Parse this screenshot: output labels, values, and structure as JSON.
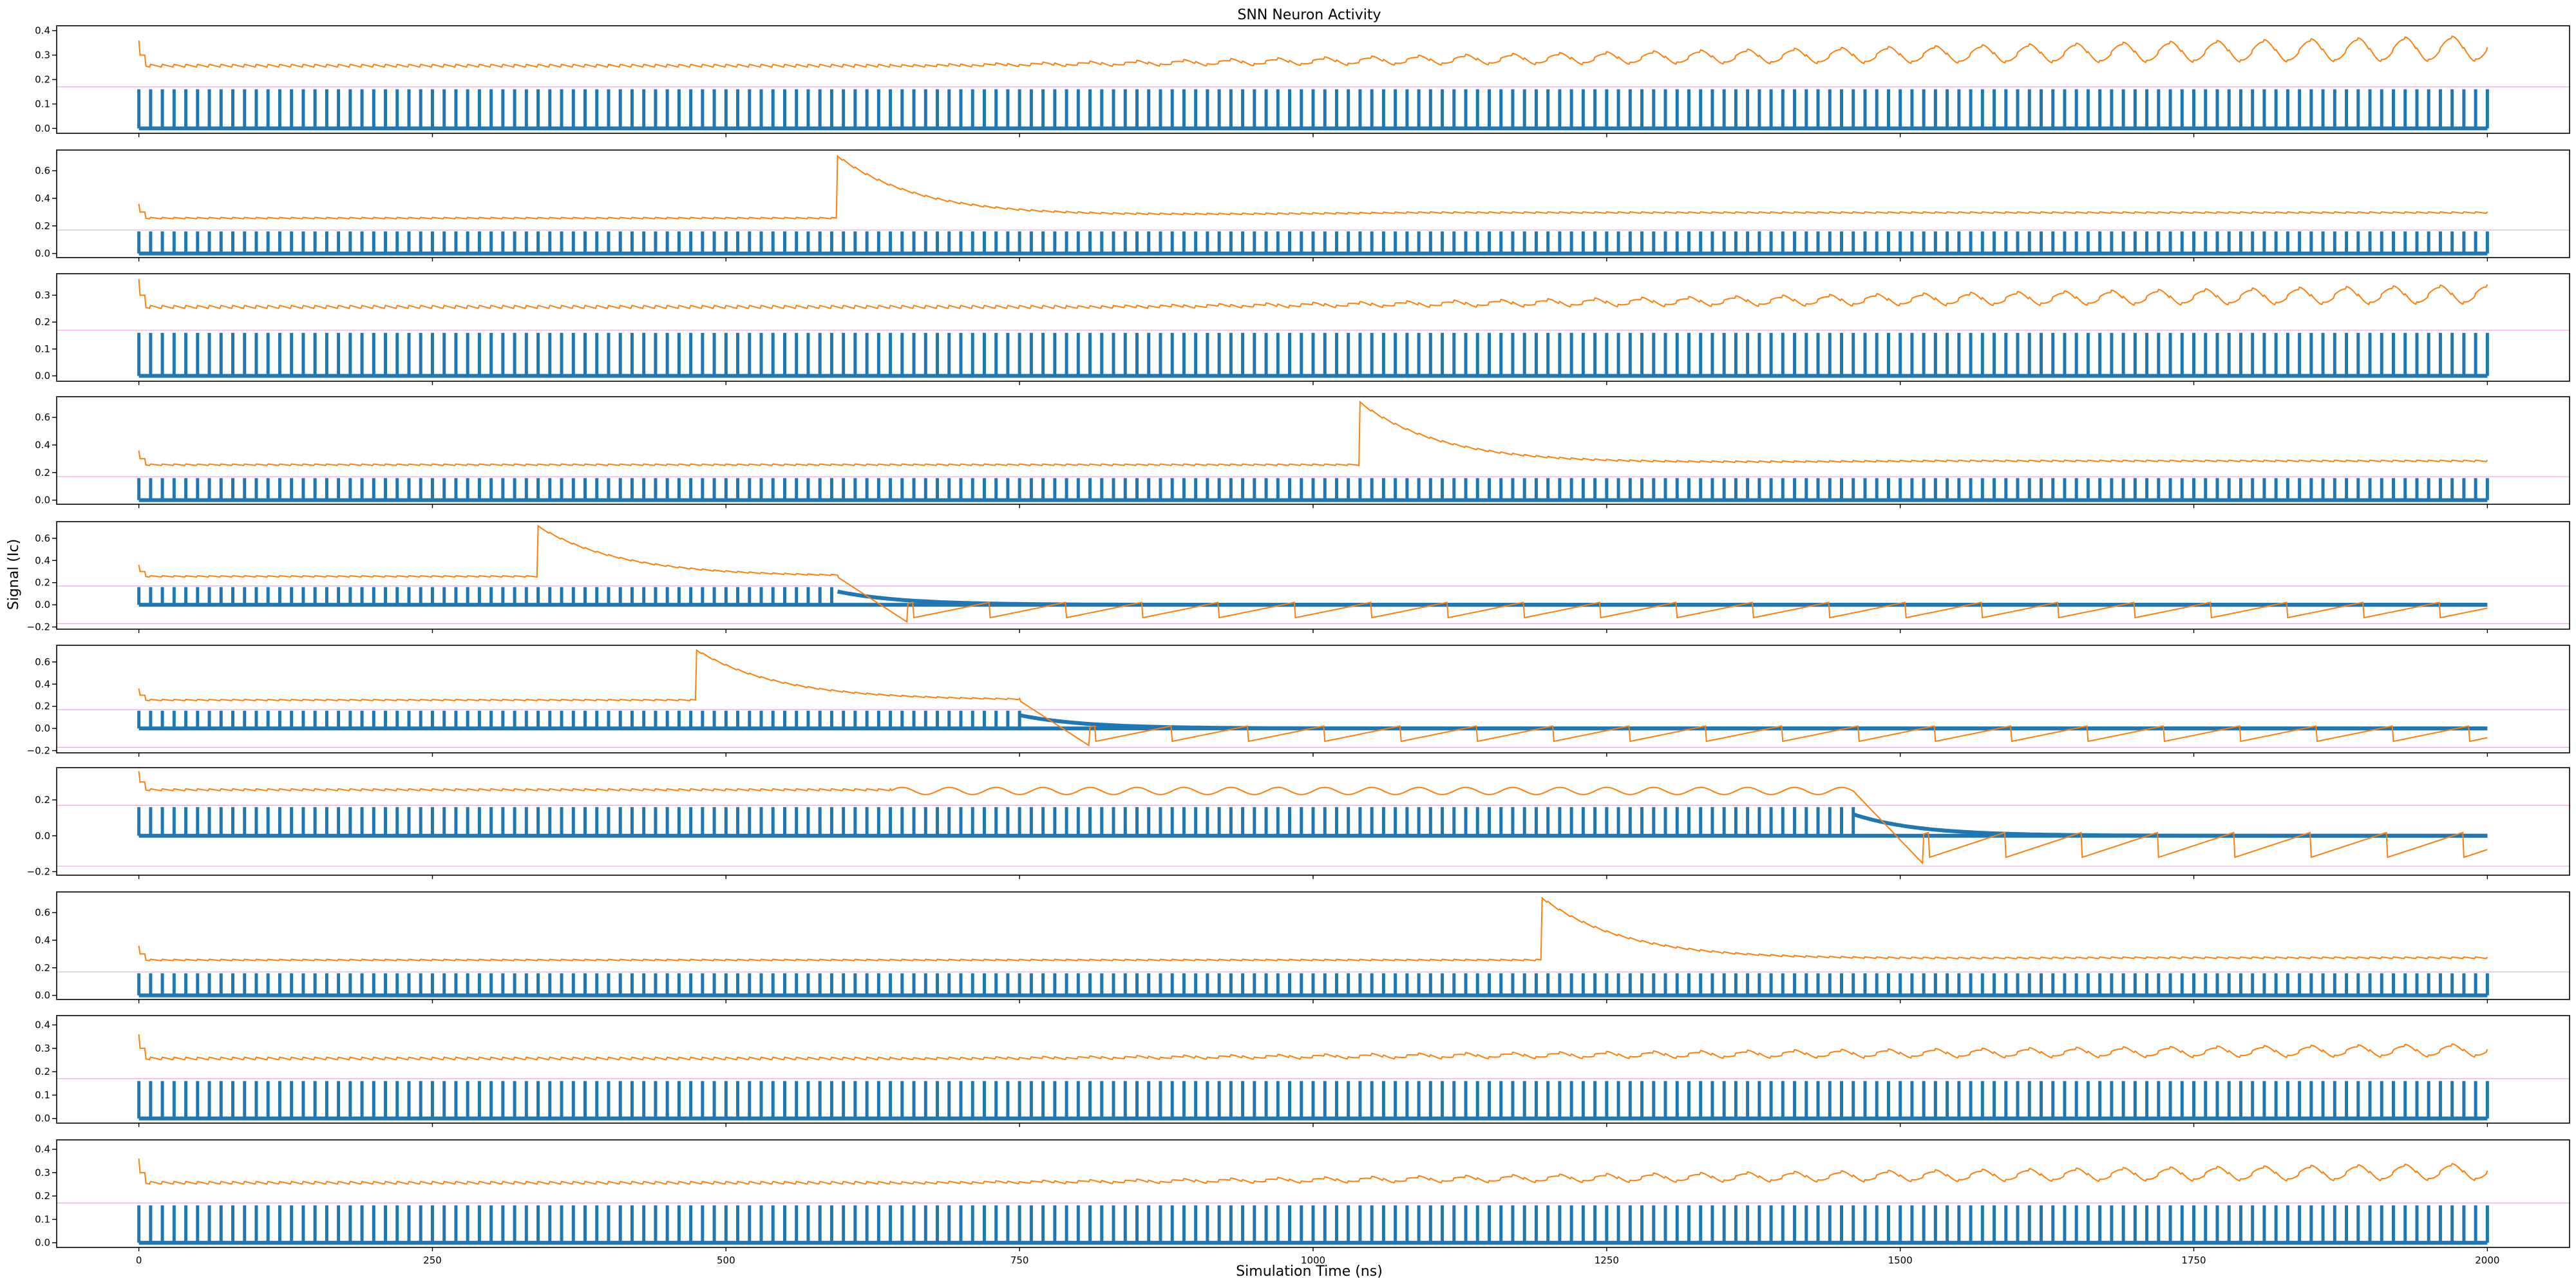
{
  "chart_data": {
    "type": "line",
    "title": "SNN Neuron Activity",
    "xlabel": "Simulation Time (ns)",
    "ylabel": "Signal (Ic)",
    "xlim": [
      -70,
      2070
    ],
    "x_ticks": [
      0,
      250,
      500,
      750,
      1000,
      1250,
      1500,
      1750,
      2000
    ],
    "grid": false,
    "legend": "none",
    "colors": {
      "spike_series": "#1f77b4",
      "membrane_series": "#ff7f0e",
      "threshold_lines": "#cc66cc"
    },
    "threshold_levels": [
      0.17,
      -0.17
    ],
    "spike_period": 10,
    "spike_height": 0.16,
    "panels": [
      {
        "ylim": [
          -0.02,
          0.42
        ],
        "y_ticks": [
          "0.0",
          "0.1",
          "0.2",
          "0.3",
          "0.4"
        ],
        "y_tick_values": [
          0,
          0.1,
          0.2,
          0.3,
          0.4
        ],
        "spike_end": null,
        "burst_at": null,
        "drift_onset": 640,
        "end_level": 0.37
      },
      {
        "ylim": [
          -0.03,
          0.75
        ],
        "y_ticks": [
          "0.0",
          "0.2",
          "0.4",
          "0.6"
        ],
        "y_tick_values": [
          0,
          0.2,
          0.4,
          0.6
        ],
        "spike_end": null,
        "burst_at": 595,
        "drift_onset": null,
        "end_level": 0.35
      },
      {
        "ylim": [
          -0.02,
          0.38
        ],
        "y_ticks": [
          "0.0",
          "0.1",
          "0.2",
          "0.3"
        ],
        "y_tick_values": [
          0,
          0.1,
          0.2,
          0.3
        ],
        "spike_end": null,
        "burst_at": null,
        "drift_onset": 790,
        "end_level": 0.33
      },
      {
        "ylim": [
          -0.03,
          0.75
        ],
        "y_ticks": [
          "0.0",
          "0.2",
          "0.4",
          "0.6"
        ],
        "y_tick_values": [
          0,
          0.2,
          0.4,
          0.6
        ],
        "spike_end": null,
        "burst_at": 1040,
        "drift_onset": null,
        "end_level": 0.32
      },
      {
        "ylim": [
          -0.22,
          0.75
        ],
        "y_ticks": [
          "−0.2",
          "0.0",
          "0.2",
          "0.4",
          "0.6"
        ],
        "y_tick_values": [
          -0.2,
          0,
          0.2,
          0.4,
          0.6
        ],
        "spike_end": 595,
        "burst_at": 340,
        "drift_onset": null,
        "end_level": -0.03
      },
      {
        "ylim": [
          -0.22,
          0.75
        ],
        "y_ticks": [
          "−0.2",
          "0.0",
          "0.2",
          "0.4",
          "0.6"
        ],
        "y_tick_values": [
          -0.2,
          0,
          0.2,
          0.4,
          0.6
        ],
        "spike_end": 750,
        "burst_at": 475,
        "drift_onset": null,
        "end_level": -0.03
      },
      {
        "ylim": [
          -0.22,
          0.38
        ],
        "y_ticks": [
          "−0.2",
          "0.0",
          "0.2"
        ],
        "y_tick_values": [
          -0.2,
          0,
          0.2
        ],
        "spike_end": 1460,
        "burst_at": null,
        "drift_onset": 640,
        "end_level": -0.05
      },
      {
        "ylim": [
          -0.03,
          0.75
        ],
        "y_ticks": [
          "0.0",
          "0.2",
          "0.4",
          "0.6"
        ],
        "y_tick_values": [
          0,
          0.2,
          0.4,
          0.6
        ],
        "spike_end": null,
        "burst_at": 1195,
        "drift_onset": null,
        "end_level": 0.29
      },
      {
        "ylim": [
          -0.02,
          0.44
        ],
        "y_ticks": [
          "0.0",
          "0.1",
          "0.2",
          "0.3",
          "0.4"
        ],
        "y_tick_values": [
          0,
          0.1,
          0.2,
          0.3,
          0.4
        ],
        "spike_end": null,
        "burst_at": null,
        "drift_onset": 640,
        "end_level": 0.31
      },
      {
        "ylim": [
          -0.02,
          0.44
        ],
        "y_ticks": [
          "0.0",
          "0.1",
          "0.2",
          "0.3",
          "0.4"
        ],
        "y_tick_values": [
          0,
          0.1,
          0.2,
          0.3,
          0.4
        ],
        "spike_end": null,
        "burst_at": null,
        "drift_onset": 640,
        "end_level": 0.33
      }
    ]
  }
}
